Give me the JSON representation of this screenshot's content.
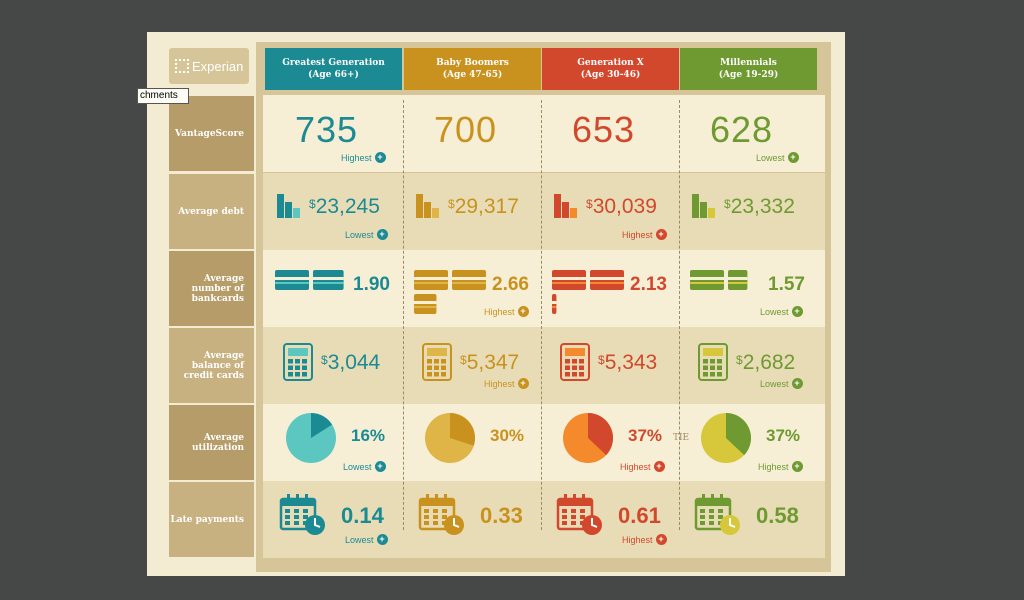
{
  "logo": {
    "text": "Experian"
  },
  "tooltip": {
    "text": "chments"
  },
  "tie_label": "TIE",
  "generations": [
    {
      "name": "Greatest Generation",
      "age": "(Age 66+)",
      "color": "#1c8a93",
      "light": "#5cc7c0"
    },
    {
      "name": "Baby Boomers",
      "age": "(Age 47-65)",
      "color": "#c9921f",
      "light": "#e0b548"
    },
    {
      "name": "Generation X",
      "age": "(Age 30-46)",
      "color": "#d2482c",
      "light": "#f58a2c"
    },
    {
      "name": "Millennials",
      "age": "(Age 19-29)",
      "color": "#6e9a31",
      "light": "#d6c83a"
    }
  ],
  "row_labels": {
    "vantage": "VantageScore",
    "debt": "Average debt",
    "bankcards": "Average number of bankcards",
    "balance": "Average balance of credit cards",
    "utilization": "Average utilization",
    "late": "Late payments"
  },
  "tags": {
    "highest": "Highest",
    "lowest": "Lowest"
  },
  "rows": {
    "vantage": [
      {
        "value": "735",
        "tag": "Highest"
      },
      {
        "value": "700",
        "tag": ""
      },
      {
        "value": "653",
        "tag": ""
      },
      {
        "value": "628",
        "tag": "Lowest"
      }
    ],
    "debt": [
      {
        "value": "23,245",
        "tag": "Lowest"
      },
      {
        "value": "29,317",
        "tag": ""
      },
      {
        "value": "30,039",
        "tag": "Highest"
      },
      {
        "value": "23,332",
        "tag": ""
      }
    ],
    "bankcards": [
      {
        "value": "1.90",
        "tag": "",
        "count": 1.9
      },
      {
        "value": "2.66",
        "tag": "Highest",
        "count": 2.66
      },
      {
        "value": "2.13",
        "tag": "",
        "count": 2.13
      },
      {
        "value": "1.57",
        "tag": "Lowest",
        "count": 1.57
      }
    ],
    "balance": [
      {
        "value": "3,044",
        "tag": ""
      },
      {
        "value": "5,347",
        "tag": "Highest"
      },
      {
        "value": "5,343",
        "tag": ""
      },
      {
        "value": "2,682",
        "tag": "Lowest"
      }
    ],
    "utilization": [
      {
        "value": "16%",
        "tag": "Lowest",
        "pct": 16
      },
      {
        "value": "30%",
        "tag": "",
        "pct": 30
      },
      {
        "value": "37%",
        "tag": "Highest",
        "pct": 37
      },
      {
        "value": "37%",
        "tag": "Highest",
        "pct": 37
      }
    ],
    "late": [
      {
        "value": "0.14",
        "tag": "Lowest"
      },
      {
        "value": "0.33",
        "tag": ""
      },
      {
        "value": "0.61",
        "tag": "Highest"
      },
      {
        "value": "0.58",
        "tag": ""
      }
    ]
  }
}
